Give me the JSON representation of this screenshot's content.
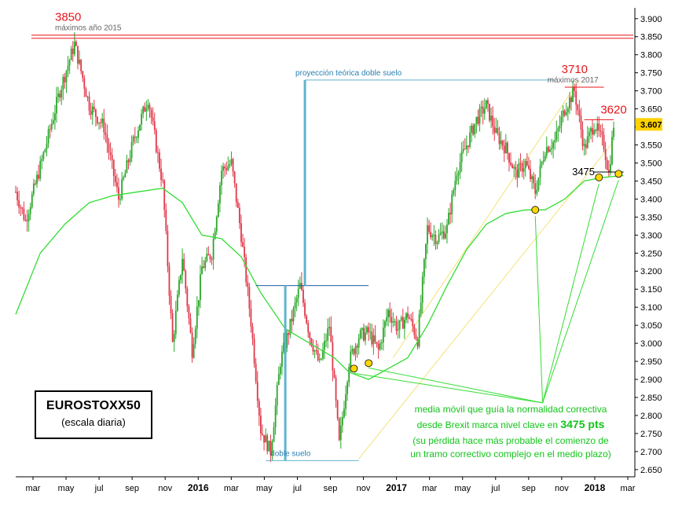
{
  "title": "EUROSTOXX50",
  "subtitle": "(escala diaria)",
  "chart_data": {
    "type": "candlestick",
    "y_ticks": [
      2650,
      2700,
      2750,
      2800,
      2850,
      2900,
      2950,
      3000,
      3050,
      3100,
      3150,
      3200,
      3250,
      3300,
      3350,
      3400,
      3450,
      3500,
      3550,
      3600,
      3650,
      3700,
      3750,
      3800,
      3850,
      3900
    ],
    "y_tick_labels": [
      "2.650",
      "2.700",
      "2.750",
      "2.800",
      "2.850",
      "2.900",
      "2.950",
      "3.000",
      "3.050",
      "3.100",
      "3.150",
      "3.200",
      "3.250",
      "3.300",
      "3.350",
      "3.400",
      "3.450",
      "3.500",
      "3.550",
      "3.600",
      "3.650",
      "3.700",
      "3.750",
      "3.800",
      "3.850",
      "3.900"
    ],
    "ylim": [
      2630,
      3930
    ],
    "last_price": 3607,
    "last_price_label": "3.607",
    "x_ticks": [
      {
        "label": "mar",
        "year": false
      },
      {
        "label": "may",
        "year": false
      },
      {
        "label": "jul",
        "year": false
      },
      {
        "label": "sep",
        "year": false
      },
      {
        "label": "nov",
        "year": false
      },
      {
        "label": "2016",
        "year": true
      },
      {
        "label": "mar",
        "year": false
      },
      {
        "label": "may",
        "year": false
      },
      {
        "label": "jul",
        "year": false
      },
      {
        "label": "sep",
        "year": false
      },
      {
        "label": "nov",
        "year": false
      },
      {
        "label": "2017",
        "year": true
      },
      {
        "label": "mar",
        "year": false
      },
      {
        "label": "may",
        "year": false
      },
      {
        "label": "jul",
        "year": false
      },
      {
        "label": "sep",
        "year": false
      },
      {
        "label": "nov",
        "year": false
      },
      {
        "label": "2018",
        "year": true
      },
      {
        "label": "mar",
        "year": false
      }
    ],
    "price_path": [
      [
        0,
        3420
      ],
      [
        2,
        3340
      ],
      [
        6,
        3540
      ],
      [
        9,
        3700
      ],
      [
        12,
        3830
      ],
      [
        15,
        3660
      ],
      [
        18,
        3600
      ],
      [
        21,
        3400
      ],
      [
        24,
        3560
      ],
      [
        27,
        3680
      ],
      [
        30,
        3440
      ],
      [
        32,
        3000
      ],
      [
        34,
        3240
      ],
      [
        36,
        2980
      ],
      [
        38,
        3210
      ],
      [
        40,
        3250
      ],
      [
        42,
        3480
      ],
      [
        44,
        3500
      ],
      [
        46,
        3300
      ],
      [
        48,
        3060
      ],
      [
        50,
        2760
      ],
      [
        52,
        2700
      ],
      [
        54,
        2950
      ],
      [
        56,
        3050
      ],
      [
        58,
        3160
      ],
      [
        60,
        3020
      ],
      [
        62,
        2940
      ],
      [
        64,
        3050
      ],
      [
        66,
        2720
      ],
      [
        68,
        2950
      ],
      [
        70,
        3020
      ],
      [
        72,
        3030
      ],
      [
        74,
        2980
      ],
      [
        76,
        3090
      ],
      [
        78,
        3040
      ],
      [
        80,
        3080
      ],
      [
        82,
        3010
      ],
      [
        84,
        3320
      ],
      [
        86,
        3290
      ],
      [
        88,
        3320
      ],
      [
        90,
        3480
      ],
      [
        92,
        3550
      ],
      [
        94,
        3620
      ],
      [
        96,
        3660
      ],
      [
        98,
        3580
      ],
      [
        100,
        3540
      ],
      [
        102,
        3470
      ],
      [
        104,
        3500
      ],
      [
        106,
        3420
      ],
      [
        108,
        3540
      ],
      [
        110,
        3560
      ],
      [
        112,
        3650
      ],
      [
        114,
        3700
      ],
      [
        116,
        3540
      ],
      [
        118,
        3610
      ],
      [
        120,
        3550
      ],
      [
        121,
        3470
      ],
      [
        122,
        3607
      ]
    ],
    "moving_average": [
      [
        0,
        3080
      ],
      [
        5,
        3250
      ],
      [
        10,
        3330
      ],
      [
        15,
        3390
      ],
      [
        20,
        3410
      ],
      [
        25,
        3420
      ],
      [
        30,
        3430
      ],
      [
        34,
        3390
      ],
      [
        38,
        3300
      ],
      [
        42,
        3290
      ],
      [
        46,
        3240
      ],
      [
        50,
        3140
      ],
      [
        55,
        3040
      ],
      [
        60,
        3000
      ],
      [
        65,
        2960
      ],
      [
        68,
        2920
      ],
      [
        72,
        2900
      ],
      [
        76,
        2930
      ],
      [
        80,
        2960
      ],
      [
        84,
        3050
      ],
      [
        88,
        3160
      ],
      [
        92,
        3260
      ],
      [
        96,
        3330
      ],
      [
        100,
        3360
      ],
      [
        104,
        3370
      ],
      [
        108,
        3370
      ],
      [
        112,
        3400
      ],
      [
        116,
        3450
      ],
      [
        120,
        3460
      ],
      [
        124,
        3465
      ]
    ],
    "levels": [
      {
        "value": 3850,
        "label": "3850",
        "note": "máximos año 2015"
      },
      {
        "value": 3710,
        "label": "3710",
        "note": "máximos 2017"
      },
      {
        "value": 3620,
        "label": "3620"
      },
      {
        "value": 3475,
        "label": "3475"
      }
    ],
    "double_bottom": {
      "bottom": 2675,
      "neck": 3160,
      "target": 3730,
      "label_bottom": "doble suelo",
      "label_target": "proyección teórica doble suelo"
    },
    "touch_points": [
      [
        69,
        2930
      ],
      [
        72,
        2945
      ],
      [
        106,
        3370
      ],
      [
        119,
        3460
      ],
      [
        123,
        3470
      ]
    ],
    "annotation": {
      "line1": "media móvil que guía la normalidad correctiva",
      "line2_pre": "desde Brexit marca nivel clave en ",
      "line2_bold": "3475 pts",
      "line3": "(su pérdida hace más probable el comienzo de",
      "line4": "un tramo correctivo complejo en el medio plazo)"
    },
    "colors": {
      "up": "#2aa62a",
      "down": "#e0384a",
      "ma": "#33dd33",
      "resistance": "#e8141b",
      "projection": "#5fb4cf",
      "channel": "#f3e27a",
      "touch": "#ffd700"
    }
  }
}
